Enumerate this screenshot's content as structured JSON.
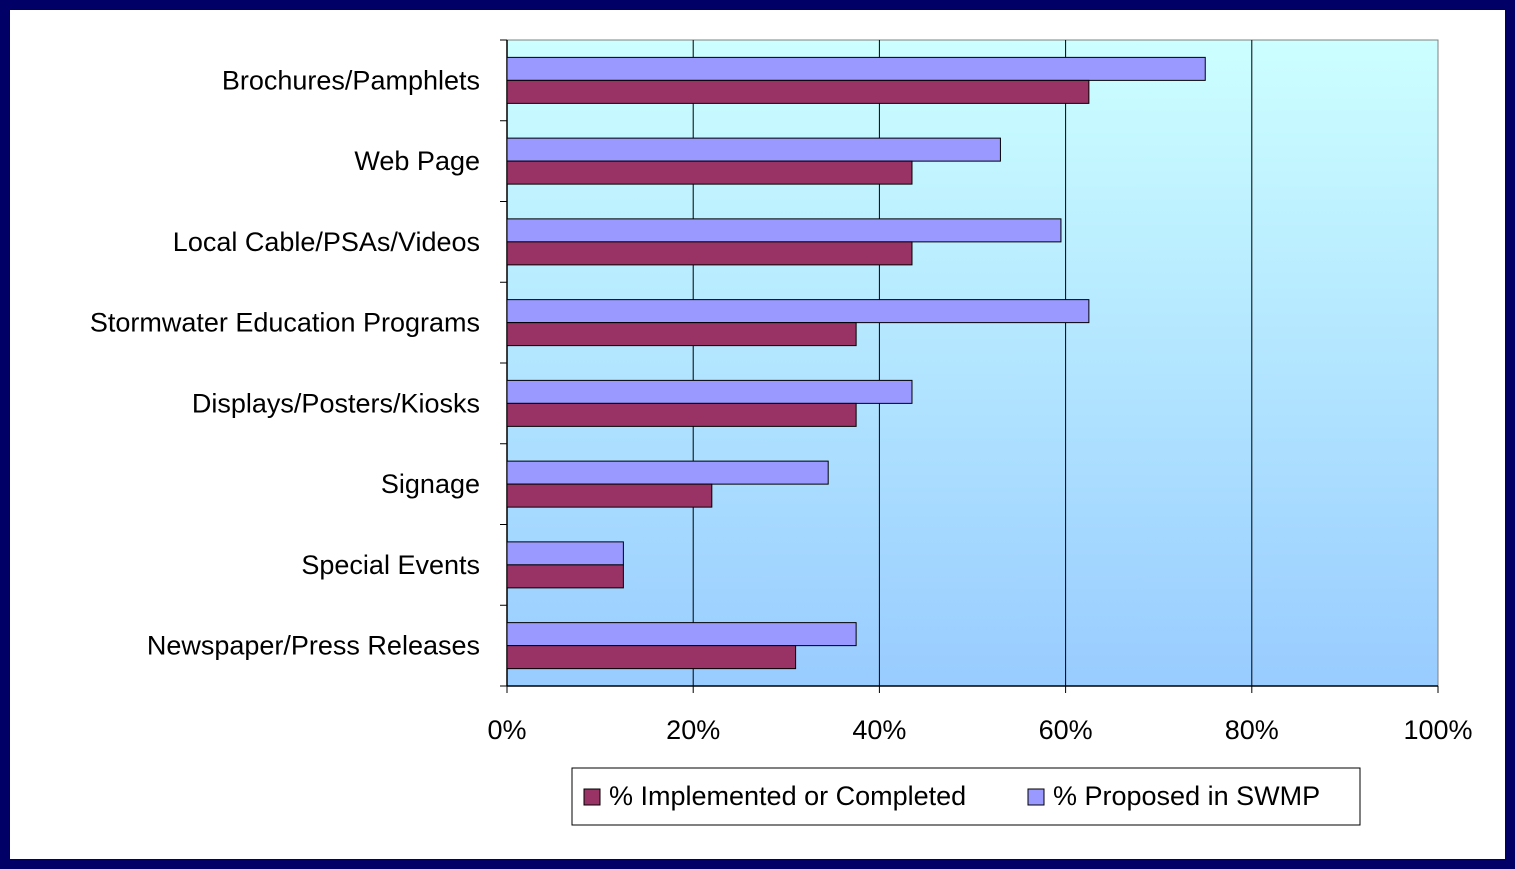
{
  "chart_data": {
    "type": "bar",
    "orientation": "horizontal",
    "title": "",
    "xlabel": "",
    "ylabel": "",
    "categories": [
      "Brochures/Pamphlets",
      "Web Page",
      "Local Cable/PSAs/Videos",
      "Stormwater Education Programs",
      "Displays/Posters/Kiosks",
      "Signage",
      "Special Events",
      "Newspaper/Press Releases"
    ],
    "series": [
      {
        "name": "% Proposed in SWMP",
        "color": "#9999ff",
        "values": [
          75,
          53,
          59.5,
          62.5,
          43.5,
          34.5,
          12.5,
          37.5
        ]
      },
      {
        "name": "% Implemented or Completed",
        "color": "#993366",
        "values": [
          62.5,
          43.5,
          43.5,
          37.5,
          37.5,
          22,
          12.5,
          31
        ]
      }
    ],
    "xlim": [
      0,
      100
    ],
    "x_ticks": [
      "0%",
      "20%",
      "40%",
      "60%",
      "80%",
      "100%"
    ],
    "grid": true,
    "legend": {
      "placement": "bottom",
      "entries": [
        "% Implemented or Completed",
        "% Proposed in SWMP"
      ]
    },
    "plot_background": {
      "top_color": "#ccffff",
      "bottom_color": "#99ccff"
    }
  }
}
